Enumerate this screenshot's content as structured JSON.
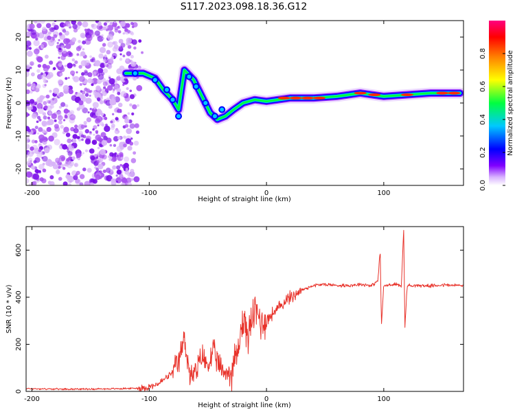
{
  "title": "S117.2023.098.18.36.G12",
  "chart_data": [
    {
      "type": "heatmap",
      "xlabel": "Height of straight line (km)",
      "ylabel": "Frequency (Hz)",
      "xlim": [
        -205,
        168
      ],
      "ylim": [
        -25,
        25
      ],
      "xticks": [
        -200,
        -100,
        0,
        100
      ],
      "yticks": [
        -20,
        -10,
        0,
        10,
        20
      ],
      "colorbar": {
        "label": "Normalized spectral amplitude",
        "range": [
          0,
          1
        ],
        "ticks": [
          "0.0",
          "0.2",
          "0.4",
          "0.6",
          "0.8"
        ],
        "colormap": [
          "#ffffff",
          "#d9b3ff",
          "#8000ff",
          "#0000ff",
          "#00c8ff",
          "#00ff40",
          "#ffff00",
          "#ff8000",
          "#ff0000",
          "#ff0080"
        ]
      },
      "features": [
        {
          "name": "noise-region",
          "x_range": [
            -205,
            -105
          ],
          "freq_range": [
            -25,
            25
          ],
          "amplitude": 0.1
        },
        {
          "name": "main-trace",
          "points": [
            [
              -120,
              9
            ],
            [
              -105,
              9
            ],
            [
              -95,
              7.5
            ],
            [
              -88,
              4
            ],
            [
              -80,
              1
            ],
            [
              -75,
              -2
            ],
            [
              -70,
              10
            ],
            [
              -62,
              7
            ],
            [
              -55,
              2
            ],
            [
              -48,
              -3
            ],
            [
              -42,
              -5
            ],
            [
              -35,
              -4
            ],
            [
              -28,
              -2
            ],
            [
              -20,
              0
            ],
            [
              -10,
              1
            ],
            [
              0,
              0.5
            ],
            [
              20,
              1.5
            ],
            [
              40,
              1.5
            ],
            [
              60,
              2
            ],
            [
              80,
              3
            ],
            [
              100,
              2
            ],
            [
              120,
              2.5
            ],
            [
              140,
              3
            ],
            [
              165,
              3
            ]
          ],
          "amplitude": 0.8
        }
      ]
    },
    {
      "type": "line",
      "xlabel": "Height of straight line (km)",
      "ylabel": "SNR (10 * v/v)",
      "xlim": [
        -205,
        168
      ],
      "ylim": [
        0,
        700
      ],
      "xticks": [
        -200,
        -100,
        0,
        100
      ],
      "yticks": [
        0,
        200,
        400,
        600
      ],
      "color": "#e8322a",
      "series": [
        {
          "name": "SNR",
          "x": [
            -205,
            -180,
            -150,
            -120,
            -105,
            -95,
            -90,
            -85,
            -80,
            -75,
            -70,
            -65,
            -60,
            -55,
            -50,
            -45,
            -40,
            -35,
            -30,
            -25,
            -20,
            -15,
            -10,
            -5,
            0,
            5,
            10,
            15,
            20,
            30,
            40,
            50,
            60,
            70,
            80,
            90,
            95,
            97,
            98,
            100,
            105,
            110,
            115,
            117,
            118,
            120,
            125,
            130,
            140,
            150,
            160,
            168
          ],
          "y": [
            12,
            10,
            10,
            12,
            15,
            25,
            40,
            60,
            80,
            120,
            230,
            60,
            80,
            150,
            110,
            170,
            100,
            80,
            80,
            160,
            300,
            240,
            350,
            300,
            300,
            330,
            350,
            380,
            400,
            430,
            450,
            455,
            450,
            450,
            455,
            450,
            470,
            600,
            280,
            450,
            450,
            455,
            450,
            690,
            270,
            450,
            450,
            450,
            448,
            452,
            450,
            450
          ]
        }
      ]
    }
  ]
}
